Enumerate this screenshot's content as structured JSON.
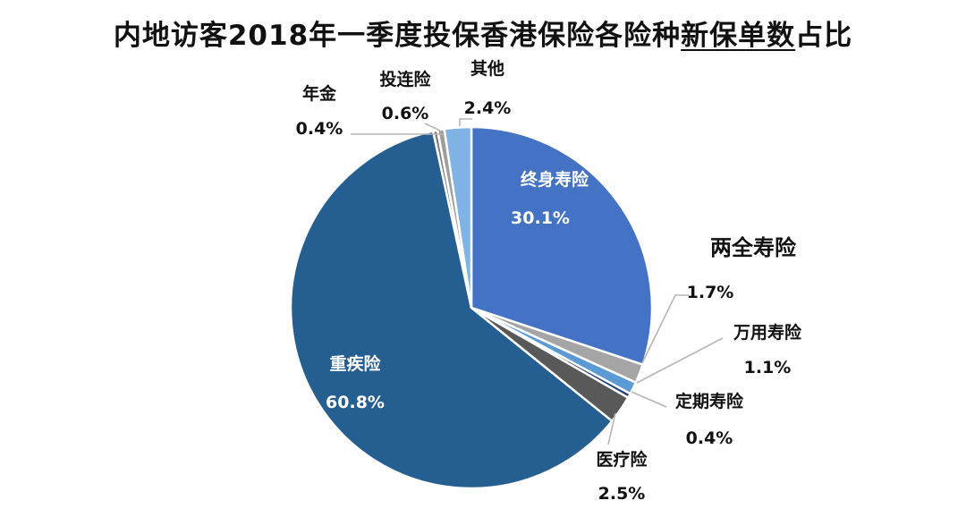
{
  "title": {
    "before": "内地访客2018年一季度投保香港保险各险种",
    "underlined": "新保单数",
    "after": "占比"
  },
  "chart_data": {
    "type": "pie",
    "title": "内地访客2018年一季度投保香港保险各险种新保单数占比",
    "unit": "%",
    "slices": [
      {
        "name": "终身寿险",
        "value": 30.1,
        "label": "30.1%",
        "color": "#4472C4"
      },
      {
        "name": "两全寿险",
        "value": 1.7,
        "label": "1.7%",
        "color": "#A5A5A5"
      },
      {
        "name": "万用寿险",
        "value": 1.1,
        "label": "1.1%",
        "color": "#5B9BD5"
      },
      {
        "name": "定期寿险",
        "value": 0.4,
        "label": "0.4%",
        "color": "#264478"
      },
      {
        "name": "医疗险",
        "value": 2.5,
        "label": "2.5%",
        "color": "#595959"
      },
      {
        "name": "重疾险",
        "value": 60.8,
        "label": "60.8%",
        "color": "#255E91"
      },
      {
        "name": "年金",
        "value": 0.4,
        "label": "0.4%",
        "color": "#7F7F7F"
      },
      {
        "name": "投连险",
        "value": 0.6,
        "label": "0.6%",
        "color": "#9E9E9E"
      },
      {
        "name": "其他",
        "value": 2.4,
        "label": "2.4%",
        "color": "#7FB2E5"
      }
    ]
  }
}
